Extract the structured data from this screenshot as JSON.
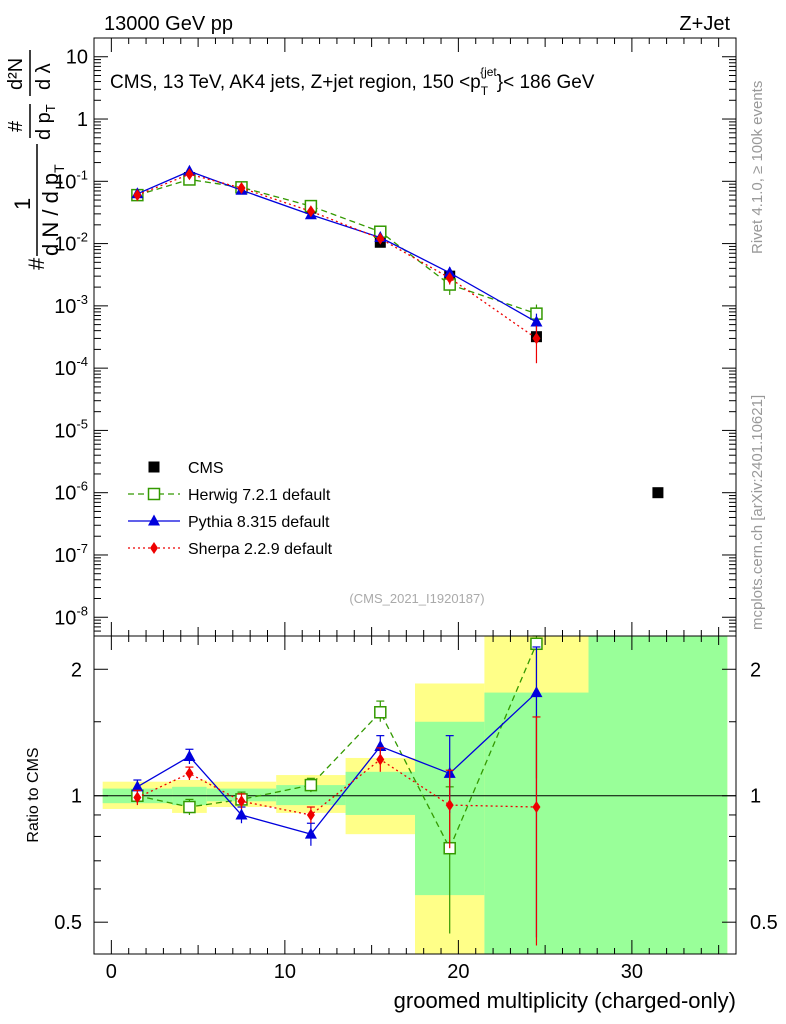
{
  "header": {
    "left": "13000 GeV pp",
    "right": "Z+Jet"
  },
  "side_labels": {
    "rivet": "Rivet 4.1.0, ≥ 100k events",
    "mcplots": "mcplots.cern.ch [arXiv:2401.10621]"
  },
  "colors": {
    "cms": "#000000",
    "herwig": "#339900",
    "pythia": "#0000dd",
    "sherpa": "#ee0000",
    "band_inner": "#99ff99",
    "band_outer": "#ffff88"
  },
  "chart_data": [
    {
      "type": "scatter",
      "panel": "main",
      "title": "CMS, 13 TeV, AK4 jets, Z+jet region, 150 <p_T^{jet}< 186 GeV",
      "title_parts": {
        "main": "CMS, 13 TeV, AK4 jets, Z+jet region, 150 <p",
        "sub": "T",
        "sup": "{jet",
        "end": "}< 186 GeV"
      },
      "ylabel_parts": {
        "one_over": "1",
        "denominator": "d N / d p",
        "denominator_sub": "T",
        "hash_top": "#",
        "hash_left": "#",
        "dp": "d p",
        "dp_sub": "T",
        "d2n": "d²N",
        "dlambda": "d λ"
      },
      "yscale": "log",
      "xlim": [
        -1,
        36
      ],
      "ylim": [
        5e-09,
        20
      ],
      "y_ticks": [
        {
          "value": 1e-08,
          "base": "10",
          "exp": "-8"
        },
        {
          "value": 1e-07,
          "base": "10",
          "exp": "-7"
        },
        {
          "value": 1e-06,
          "base": "10",
          "exp": "-6"
        },
        {
          "value": 1e-05,
          "base": "10",
          "exp": "-5"
        },
        {
          "value": 0.0001,
          "base": "10",
          "exp": "-4"
        },
        {
          "value": 0.001,
          "base": "10",
          "exp": "-3"
        },
        {
          "value": 0.01,
          "base": "10",
          "exp": "-2"
        },
        {
          "value": 0.1,
          "base": "10",
          "exp": "-1"
        },
        {
          "value": 1,
          "base": "1",
          "exp": ""
        },
        {
          "value": 10,
          "base": "10",
          "exp": ""
        }
      ],
      "watermark": "(CMS_2021_I1920187)",
      "series": [
        {
          "name": "CMS",
          "key": "cms",
          "marker": "square-filled",
          "line": "none",
          "x": [
            1.5,
            4.5,
            7.5,
            11.5,
            15.5,
            19.5,
            24.5,
            31.5
          ],
          "y": [
            0.06,
            0.115,
            0.08,
            0.037,
            0.0105,
            0.003,
            0.00032,
            1e-06
          ],
          "err": [
            0,
            0,
            0,
            0,
            0,
            0,
            0,
            0
          ]
        },
        {
          "name": "Herwig 7.2.1 default",
          "key": "herwig",
          "marker": "square-open",
          "line": "dashed",
          "x": [
            1.5,
            4.5,
            7.5,
            11.5,
            15.5,
            19.5,
            24.5
          ],
          "y": [
            0.06,
            0.107,
            0.08,
            0.04,
            0.0155,
            0.0022,
            0.00075
          ],
          "err": [
            0.003,
            0.006,
            0.004,
            0.002,
            0.001,
            0.0007,
            0.0003
          ]
        },
        {
          "name": "Pythia 8.315 default",
          "key": "pythia",
          "marker": "triangle-filled",
          "line": "solid",
          "x": [
            1.5,
            4.5,
            7.5,
            11.5,
            15.5,
            19.5,
            24.5
          ],
          "y": [
            0.063,
            0.145,
            0.072,
            0.029,
            0.0125,
            0.0034,
            0.00055
          ],
          "err": [
            0.003,
            0.008,
            0.004,
            0.002,
            0.001,
            0.0008,
            0.0002
          ]
        },
        {
          "name": "Sherpa 2.2.9 default",
          "key": "sherpa",
          "marker": "diamond-filled",
          "line": "dotted",
          "x": [
            1.5,
            4.5,
            7.5,
            11.5,
            15.5,
            19.5,
            24.5
          ],
          "y": [
            0.06,
            0.13,
            0.078,
            0.033,
            0.012,
            0.0028,
            0.0003
          ],
          "err": [
            0.003,
            0.007,
            0.004,
            0.002,
            0.001,
            0.0006,
            0.00018
          ]
        }
      ]
    },
    {
      "type": "line",
      "panel": "ratio",
      "ylabel": "Ratio to CMS",
      "xlabel": "groomed multiplicity (charged-only)",
      "yscale": "log",
      "xlim": [
        -1,
        36
      ],
      "ylim": [
        0.42,
        2.4
      ],
      "x_ticks": [
        {
          "value": 0,
          "label": "0"
        },
        {
          "value": 10,
          "label": "10"
        },
        {
          "value": 20,
          "label": "20"
        },
        {
          "value": 30,
          "label": "30"
        }
      ],
      "y_ticks": [
        {
          "value": 0.5,
          "label": "0.5"
        },
        {
          "value": 1,
          "label": "1"
        },
        {
          "value": 2,
          "label": "2"
        }
      ],
      "uncertainty_bands": [
        {
          "x_low": -0.5,
          "x_high": 3.5,
          "outer": [
            0.93,
            1.08
          ],
          "inner": [
            0.96,
            1.04
          ]
        },
        {
          "x_low": 3.5,
          "x_high": 5.5,
          "outer": [
            0.91,
            1.09
          ],
          "inner": [
            0.95,
            1.05
          ]
        },
        {
          "x_low": 5.5,
          "x_high": 9.5,
          "outer": [
            0.94,
            1.08
          ],
          "inner": [
            0.97,
            1.04
          ]
        },
        {
          "x_low": 9.5,
          "x_high": 13.5,
          "outer": [
            0.91,
            1.12
          ],
          "inner": [
            0.95,
            1.06
          ]
        },
        {
          "x_low": 13.5,
          "x_high": 17.5,
          "outer": [
            0.81,
            1.23
          ],
          "inner": [
            0.9,
            1.14
          ]
        },
        {
          "x_low": 17.5,
          "x_high": 21.5,
          "outer": [
            0.35,
            1.85
          ],
          "inner": [
            0.58,
            1.5
          ]
        },
        {
          "x_low": 21.5,
          "x_high": 27.5,
          "outer": [
            0.35,
            2.5
          ],
          "inner": [
            0.35,
            1.76
          ]
        },
        {
          "x_low": 27.5,
          "x_high": 35.5,
          "outer": [
            0.35,
            2.5
          ],
          "inner": [
            0.35,
            2.5
          ]
        }
      ],
      "series": [
        {
          "name": "Herwig 7.2.1 default",
          "key": "herwig",
          "marker": "square-open",
          "line": "dashed",
          "x": [
            1.5,
            4.5,
            7.5,
            11.5,
            15.5,
            19.5,
            24.5
          ],
          "y": [
            1.0,
            0.94,
            0.98,
            1.06,
            1.58,
            0.75,
            2.3
          ],
          "err_low": [
            0.04,
            0.04,
            0.04,
            0.04,
            0.08,
            0.28,
            1.2
          ],
          "err_high": [
            0.04,
            0.04,
            0.04,
            0.04,
            0.1,
            0.3,
            0.2
          ]
        },
        {
          "name": "Pythia 8.315 default",
          "key": "pythia",
          "marker": "triangle-filled",
          "line": "solid",
          "x": [
            1.5,
            4.5,
            7.5,
            11.5,
            15.5,
            19.5,
            24.5
          ],
          "y": [
            1.05,
            1.24,
            0.9,
            0.81,
            1.31,
            1.13,
            1.76
          ],
          "err_low": [
            0.04,
            0.05,
            0.04,
            0.05,
            0.08,
            0.22,
            1.3
          ],
          "err_high": [
            0.04,
            0.05,
            0.04,
            0.05,
            0.08,
            0.26,
            0.5
          ]
        },
        {
          "name": "Sherpa 2.2.9 default",
          "key": "sherpa",
          "marker": "diamond-filled",
          "line": "dotted",
          "x": [
            1.5,
            4.5,
            7.5,
            11.5,
            15.5,
            19.5,
            24.5
          ],
          "y": [
            0.99,
            1.13,
            0.97,
            0.9,
            1.22,
            0.95,
            0.94
          ],
          "err_low": [
            0.04,
            0.04,
            0.04,
            0.04,
            0.08,
            0.2,
            0.5
          ],
          "err_high": [
            0.04,
            0.04,
            0.04,
            0.04,
            0.08,
            0.2,
            0.6
          ]
        }
      ]
    }
  ]
}
